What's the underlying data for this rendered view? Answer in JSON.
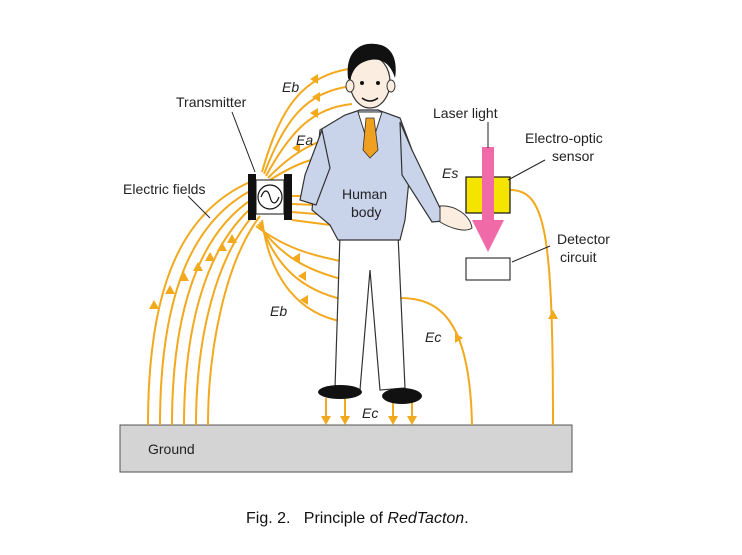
{
  "labels": {
    "transmitter": "Transmitter",
    "electric_fields": "Electric fields",
    "human_body_line1": "Human",
    "human_body_line2": "body",
    "laser_light": "Laser light",
    "electro_optic_line1": "Electro-optic",
    "electro_optic_line2": "sensor",
    "detector_line1": "Detector",
    "detector_line2": "circuit",
    "ground": "Ground"
  },
  "field_labels": {
    "eb_top": "Eb",
    "ea": "Ea",
    "es": "Es",
    "eb_bottom": "Eb",
    "ec_right": "Ec",
    "ec_bottom": "Ec"
  },
  "caption": {
    "prefix": "Fig. 2.   Principle of ",
    "name": "RedTacton",
    "suffix": "."
  },
  "colors": {
    "field": "#f2a91e",
    "laser": "#f06aa8",
    "sensor": "#f5e400",
    "suit": "#c9d3ea",
    "tie": "#f0a020",
    "ground": "#d4d4d4"
  }
}
